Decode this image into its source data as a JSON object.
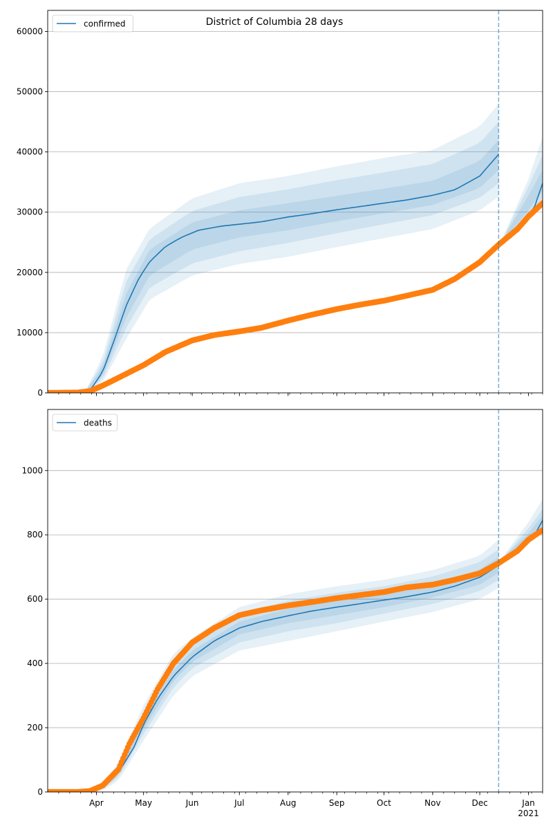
{
  "colors": {
    "model": "#1f77b4",
    "observed": "#ff7f0e",
    "grid": "#b0b0b0",
    "band": "#1f77b4"
  },
  "chart_data": [
    {
      "type": "line",
      "title": "District of Columbia 28 days",
      "xlabel": "",
      "ylabel": "",
      "ylim": [
        0,
        63500
      ],
      "xlim": [
        "2020-03-01",
        "2021-01-10"
      ],
      "yticks": [
        0,
        10000,
        20000,
        30000,
        40000,
        50000,
        60000
      ],
      "ytick_labels": [
        "0",
        "10000",
        "20000",
        "30000",
        "40000",
        "50000",
        "60000"
      ],
      "grid": "horizontal",
      "legend": {
        "placement": "top-left",
        "entries": [
          "confirmed"
        ]
      },
      "forecast_line_date": "2020-12-13",
      "series": [
        {
          "name": "confirmed",
          "kind": "model-median",
          "dates": [
            "2020-03-01",
            "2020-03-20",
            "2020-03-28",
            "2020-04-05",
            "2020-04-12",
            "2020-04-20",
            "2020-04-28",
            "2020-05-05",
            "2020-05-15",
            "2020-05-25",
            "2020-06-05",
            "2020-06-20",
            "2020-07-01",
            "2020-07-15",
            "2020-08-01",
            "2020-08-15",
            "2020-09-01",
            "2020-09-15",
            "2020-10-01",
            "2020-10-15",
            "2020-11-01",
            "2020-11-15",
            "2020-12-01",
            "2020-12-13",
            "2020-12-20",
            "2020-12-28",
            "2021-01-05",
            "2021-01-10"
          ],
          "values": [
            0,
            0,
            400,
            3500,
            8500,
            14500,
            19000,
            21800,
            24300,
            25800,
            27000,
            27700,
            28000,
            28400,
            29200,
            29700,
            30400,
            30900,
            31500,
            32000,
            32800,
            33700,
            36000,
            39600,
            25600,
            27800,
            31000,
            34800
          ]
        },
        {
          "name": "confirmed (observed)",
          "kind": "observed",
          "dates": [
            "2020-03-01",
            "2020-03-20",
            "2020-03-28",
            "2020-04-05",
            "2020-04-15",
            "2020-05-01",
            "2020-05-15",
            "2020-06-01",
            "2020-06-15",
            "2020-07-01",
            "2020-07-15",
            "2020-08-01",
            "2020-08-15",
            "2020-09-01",
            "2020-09-15",
            "2020-10-01",
            "2020-10-15",
            "2020-11-01",
            "2020-11-15",
            "2020-12-01",
            "2020-12-13",
            "2020-12-25",
            "2021-01-01",
            "2021-01-10"
          ],
          "values": [
            0,
            50,
            300,
            1200,
            2500,
            4600,
            6800,
            8700,
            9600,
            10200,
            10800,
            12000,
            12900,
            13900,
            14600,
            15300,
            16100,
            17100,
            18900,
            21700,
            24600,
            27200,
            29300,
            31500
          ]
        },
        {
          "name": "band-95",
          "kind": "band",
          "dates": [
            "2020-03-01",
            "2020-03-25",
            "2020-04-05",
            "2020-04-20",
            "2020-05-05",
            "2020-06-01",
            "2020-07-01",
            "2020-08-01",
            "2020-09-01",
            "2020-10-01",
            "2020-11-01",
            "2020-12-01",
            "2020-12-13",
            "2020-12-14",
            "2021-01-01",
            "2021-01-10"
          ],
          "lower": [
            0,
            0,
            1800,
            9000,
            15500,
            19500,
            21400,
            22600,
            24200,
            25700,
            27200,
            30300,
            32600,
            24600,
            29000,
            31200
          ],
          "upper": [
            0,
            300,
            6000,
            20500,
            27300,
            32300,
            34800,
            36000,
            37600,
            39000,
            40300,
            44200,
            48000,
            24800,
            35500,
            42500
          ]
        },
        {
          "name": "band-80",
          "kind": "band",
          "dates": [
            "2020-03-01",
            "2020-03-25",
            "2020-04-05",
            "2020-04-20",
            "2020-05-05",
            "2020-06-01",
            "2020-07-01",
            "2020-08-01",
            "2020-09-01",
            "2020-10-01",
            "2020-11-01",
            "2020-12-01",
            "2020-12-13",
            "2020-12-14",
            "2021-01-01",
            "2021-01-10"
          ],
          "lower": [
            0,
            0,
            2300,
            10800,
            17500,
            21500,
            23500,
            24900,
            26500,
            28000,
            29500,
            32400,
            34800,
            24700,
            29600,
            32300
          ],
          "upper": [
            0,
            250,
            5000,
            18500,
            25500,
            30200,
            32500,
            33800,
            35300,
            36600,
            38000,
            41500,
            45000,
            24750,
            34300,
            39500
          ]
        },
        {
          "name": "band-50",
          "kind": "band",
          "dates": [
            "2020-03-01",
            "2020-03-25",
            "2020-04-05",
            "2020-04-20",
            "2020-05-05",
            "2020-06-01",
            "2020-07-01",
            "2020-08-01",
            "2020-09-01",
            "2020-10-01",
            "2020-11-01",
            "2020-12-01",
            "2020-12-13",
            "2020-12-14",
            "2021-01-01",
            "2021-01-10"
          ],
          "lower": [
            0,
            0,
            2800,
            12500,
            19500,
            23800,
            25800,
            27000,
            28500,
            29800,
            31200,
            34000,
            37000,
            24700,
            30300,
            33500
          ],
          "upper": [
            0,
            200,
            4300,
            16500,
            23800,
            28300,
            30300,
            31500,
            32700,
            33900,
            35200,
            38500,
            42000,
            24750,
            32800,
            37000
          ]
        }
      ]
    },
    {
      "type": "line",
      "title": "",
      "xlabel": "",
      "ylabel": "",
      "ylim": [
        0,
        1190
      ],
      "xlim": [
        "2020-03-01",
        "2021-01-10"
      ],
      "yticks": [
        0,
        200,
        400,
        600,
        800,
        1000
      ],
      "ytick_labels": [
        "0",
        "200",
        "400",
        "600",
        "800",
        "1000"
      ],
      "xtick_labels": [
        "Apr",
        "May",
        "Jun",
        "Jul",
        "Aug",
        "Sep",
        "Oct",
        "Nov",
        "Dec",
        "Jan\n2021"
      ],
      "grid": "horizontal",
      "legend": {
        "placement": "top-left",
        "entries": [
          "deaths"
        ]
      },
      "forecast_line_date": "2020-12-13",
      "series": [
        {
          "name": "deaths",
          "kind": "model-median",
          "dates": [
            "2020-03-01",
            "2020-03-25",
            "2020-04-05",
            "2020-04-15",
            "2020-04-25",
            "2020-05-01",
            "2020-05-10",
            "2020-05-20",
            "2020-06-01",
            "2020-06-15",
            "2020-07-01",
            "2020-07-15",
            "2020-08-01",
            "2020-08-15",
            "2020-09-01",
            "2020-09-15",
            "2020-10-01",
            "2020-10-15",
            "2020-11-01",
            "2020-11-15",
            "2020-12-01",
            "2020-12-13",
            "2020-12-20",
            "2020-12-28",
            "2021-01-05",
            "2021-01-10"
          ],
          "values": [
            0,
            0,
            15,
            60,
            140,
            210,
            290,
            360,
            420,
            470,
            510,
            530,
            548,
            562,
            575,
            585,
            597,
            607,
            622,
            640,
            668,
            705,
            730,
            765,
            800,
            845
          ]
        },
        {
          "name": "deaths (observed)",
          "kind": "observed",
          "dates": [
            "2020-03-01",
            "2020-03-20",
            "2020-03-28",
            "2020-04-05",
            "2020-04-15",
            "2020-04-22",
            "2020-05-01",
            "2020-05-10",
            "2020-05-20",
            "2020-06-01",
            "2020-06-15",
            "2020-07-01",
            "2020-07-15",
            "2020-08-01",
            "2020-08-15",
            "2020-09-01",
            "2020-09-15",
            "2020-10-01",
            "2020-10-15",
            "2020-11-01",
            "2020-11-15",
            "2020-12-01",
            "2020-12-13",
            "2020-12-25",
            "2021-01-01",
            "2021-01-10"
          ],
          "values": [
            0,
            0,
            3,
            20,
            70,
            150,
            230,
            320,
            400,
            465,
            510,
            550,
            565,
            580,
            590,
            603,
            612,
            622,
            636,
            645,
            660,
            680,
            712,
            750,
            785,
            815
          ]
        },
        {
          "name": "band-95",
          "kind": "band",
          "dates": [
            "2020-03-01",
            "2020-03-25",
            "2020-04-05",
            "2020-04-15",
            "2020-05-01",
            "2020-05-20",
            "2020-06-01",
            "2020-07-01",
            "2020-08-01",
            "2020-09-01",
            "2020-10-01",
            "2020-11-01",
            "2020-12-01",
            "2020-12-13",
            "2020-12-14",
            "2021-01-01",
            "2021-01-10"
          ],
          "lower": [
            0,
            0,
            5,
            35,
            160,
            300,
            360,
            440,
            470,
            500,
            530,
            560,
            600,
            635,
            715,
            770,
            810
          ],
          "upper": [
            0,
            0,
            30,
            90,
            270,
            430,
            480,
            575,
            615,
            640,
            660,
            690,
            735,
            785,
            720,
            840,
            910
          ]
        },
        {
          "name": "band-80",
          "kind": "band",
          "dates": [
            "2020-03-01",
            "2020-03-25",
            "2020-04-05",
            "2020-04-15",
            "2020-05-01",
            "2020-05-20",
            "2020-06-01",
            "2020-07-01",
            "2020-08-01",
            "2020-09-01",
            "2020-10-01",
            "2020-11-01",
            "2020-12-01",
            "2020-12-13",
            "2020-12-14",
            "2021-01-01",
            "2021-01-10"
          ],
          "lower": [
            0,
            0,
            8,
            45,
            180,
            325,
            385,
            465,
            500,
            525,
            555,
            585,
            625,
            660,
            715,
            780,
            820
          ],
          "upper": [
            0,
            0,
            25,
            80,
            250,
            405,
            460,
            555,
            595,
            620,
            640,
            670,
            715,
            755,
            720,
            820,
            880
          ]
        },
        {
          "name": "band-50",
          "kind": "band",
          "dates": [
            "2020-03-01",
            "2020-03-25",
            "2020-04-05",
            "2020-04-15",
            "2020-05-01",
            "2020-05-20",
            "2020-06-01",
            "2020-07-01",
            "2020-08-01",
            "2020-09-01",
            "2020-10-01",
            "2020-11-01",
            "2020-12-01",
            "2020-12-13",
            "2020-12-14",
            "2021-01-01",
            "2021-01-10"
          ],
          "lower": [
            0,
            0,
            11,
            52,
            195,
            345,
            405,
            490,
            525,
            550,
            575,
            605,
            645,
            682,
            715,
            790,
            830
          ],
          "upper": [
            0,
            0,
            20,
            70,
            230,
            380,
            440,
            530,
            570,
            600,
            618,
            642,
            692,
            730,
            720,
            805,
            860
          ]
        }
      ]
    }
  ]
}
